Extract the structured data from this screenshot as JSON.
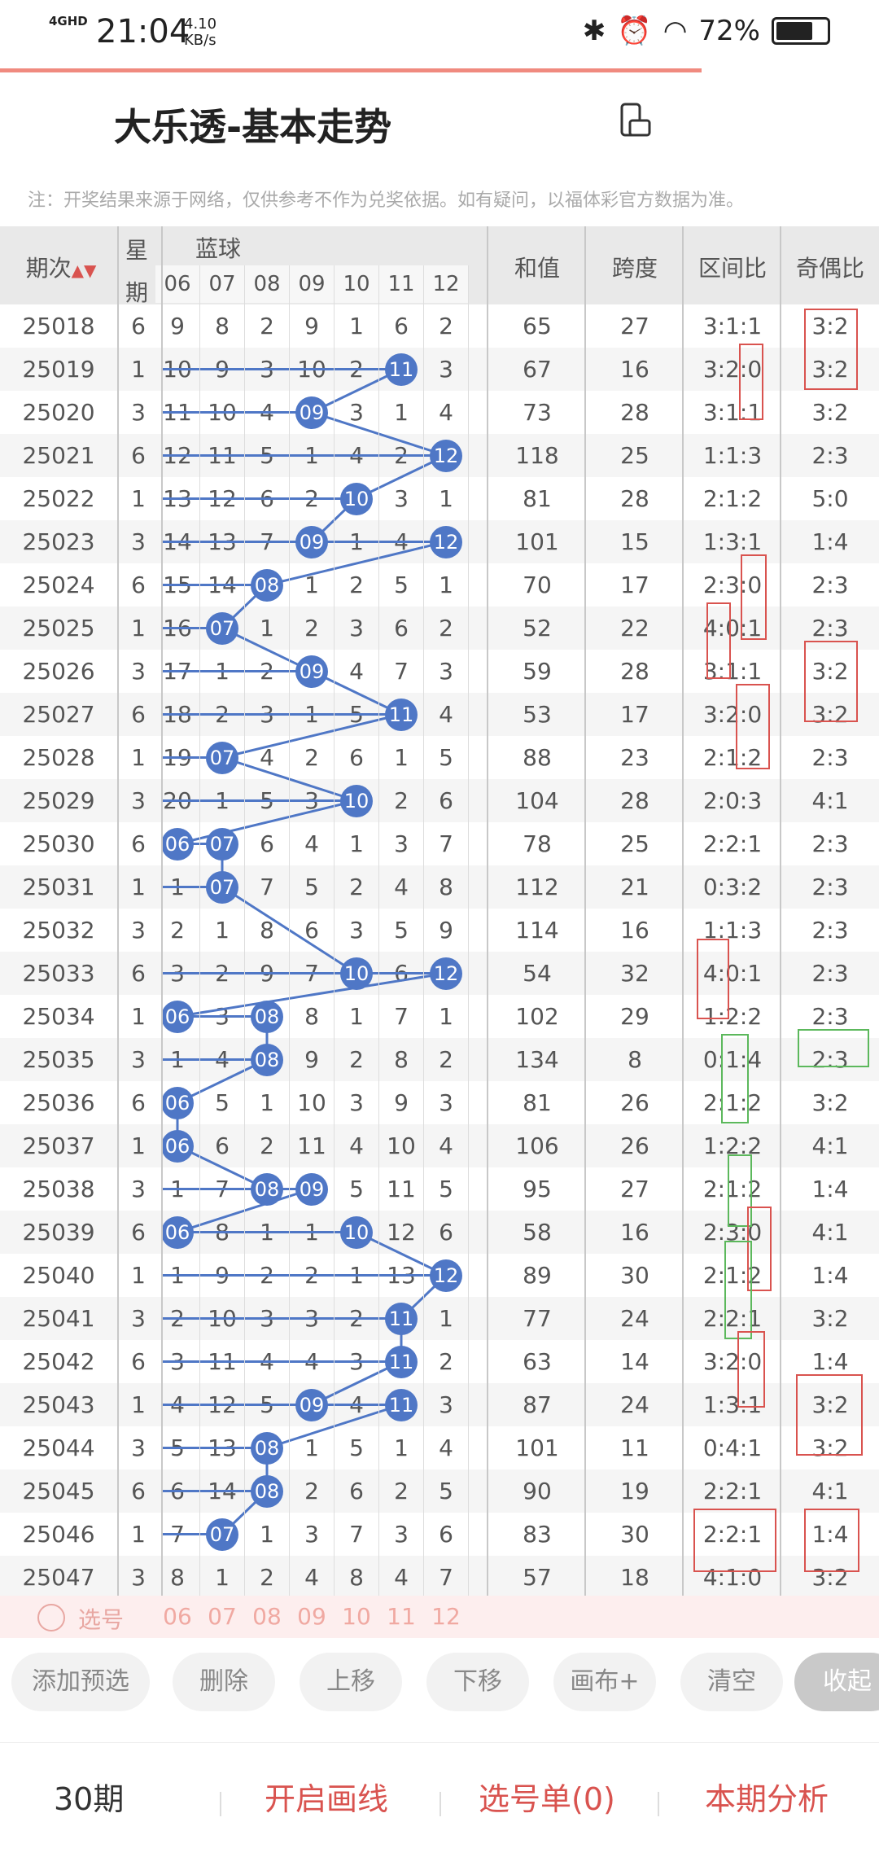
{
  "status": {
    "network": "4GHD",
    "time": "21:04",
    "speed_value": "4.10",
    "speed_unit": "KB/s",
    "battery": "72%"
  },
  "title": "大乐透-基本走势",
  "notice": "注：开奖结果来源于网络，仅供参考不作为兑奖依据。如有疑问，以福体彩官方数据为准。",
  "header": {
    "period": "期次",
    "week_1": "星",
    "week_2": "期",
    "blue": "蓝球",
    "sum": "和值",
    "span": "跨度",
    "range": "区间比",
    "odd_even": "奇偶比",
    "cols": [
      "06",
      "07",
      "08",
      "09",
      "10",
      "11",
      "12"
    ]
  },
  "rows": [
    {
      "p": "25018",
      "w": "6",
      "n": [
        "9",
        "8",
        "2",
        "9",
        "1",
        "6",
        "2"
      ],
      "s": "65",
      "sp": "27",
      "r": "3:1:1",
      "oe": "3:2"
    },
    {
      "p": "25019",
      "w": "1",
      "n": [
        "10",
        "9",
        "3",
        "10",
        "2",
        "11",
        "3"
      ],
      "s": "67",
      "sp": "16",
      "r": "3:2:0",
      "oe": "3:2"
    },
    {
      "p": "25020",
      "w": "3",
      "n": [
        "11",
        "10",
        "4",
        "09",
        "3",
        "1",
        "4"
      ],
      "s": "73",
      "sp": "28",
      "r": "3:1:1",
      "oe": "3:2"
    },
    {
      "p": "25021",
      "w": "6",
      "n": [
        "12",
        "11",
        "5",
        "1",
        "4",
        "2",
        "12"
      ],
      "s": "118",
      "sp": "25",
      "r": "1:1:3",
      "oe": "2:3"
    },
    {
      "p": "25022",
      "w": "1",
      "n": [
        "13",
        "12",
        "6",
        "2",
        "10",
        "3",
        "1"
      ],
      "s": "81",
      "sp": "28",
      "r": "2:1:2",
      "oe": "5:0"
    },
    {
      "p": "25023",
      "w": "3",
      "n": [
        "14",
        "13",
        "7",
        "09",
        "1",
        "4",
        "12"
      ],
      "s": "101",
      "sp": "15",
      "r": "1:3:1",
      "oe": "1:4"
    },
    {
      "p": "25024",
      "w": "6",
      "n": [
        "15",
        "14",
        "08",
        "1",
        "2",
        "5",
        "1"
      ],
      "s": "70",
      "sp": "17",
      "r": "2:3:0",
      "oe": "2:3"
    },
    {
      "p": "25025",
      "w": "1",
      "n": [
        "16",
        "07",
        "1",
        "2",
        "3",
        "6",
        "2"
      ],
      "s": "52",
      "sp": "22",
      "r": "4:0:1",
      "oe": "2:3"
    },
    {
      "p": "25026",
      "w": "3",
      "n": [
        "17",
        "1",
        "2",
        "09",
        "4",
        "7",
        "3"
      ],
      "s": "59",
      "sp": "28",
      "r": "3:1:1",
      "oe": "3:2"
    },
    {
      "p": "25027",
      "w": "6",
      "n": [
        "18",
        "2",
        "3",
        "1",
        "5",
        "11",
        "4"
      ],
      "s": "53",
      "sp": "17",
      "r": "3:2:0",
      "oe": "3:2"
    },
    {
      "p": "25028",
      "w": "1",
      "n": [
        "19",
        "07",
        "4",
        "2",
        "6",
        "1",
        "5"
      ],
      "s": "88",
      "sp": "23",
      "r": "2:1:2",
      "oe": "2:3"
    },
    {
      "p": "25029",
      "w": "3",
      "n": [
        "20",
        "1",
        "5",
        "3",
        "10",
        "2",
        "6"
      ],
      "s": "104",
      "sp": "28",
      "r": "2:0:3",
      "oe": "4:1"
    },
    {
      "p": "25030",
      "w": "6",
      "n": [
        "06",
        "07",
        "6",
        "4",
        "1",
        "3",
        "7"
      ],
      "s": "78",
      "sp": "25",
      "r": "2:2:1",
      "oe": "2:3"
    },
    {
      "p": "25031",
      "w": "1",
      "n": [
        "1",
        "07",
        "7",
        "5",
        "2",
        "4",
        "8"
      ],
      "s": "112",
      "sp": "21",
      "r": "0:3:2",
      "oe": "2:3"
    },
    {
      "p": "25032",
      "w": "3",
      "n": [
        "2",
        "1",
        "8",
        "6",
        "3",
        "5",
        "9"
      ],
      "s": "114",
      "sp": "16",
      "r": "1:1:3",
      "oe": "2:3"
    },
    {
      "p": "25033",
      "w": "6",
      "n": [
        "3",
        "2",
        "9",
        "7",
        "10",
        "6",
        "12"
      ],
      "s": "54",
      "sp": "32",
      "r": "4:0:1",
      "oe": "2:3"
    },
    {
      "p": "25034",
      "w": "1",
      "n": [
        "06",
        "3",
        "08",
        "8",
        "1",
        "7",
        "1"
      ],
      "s": "102",
      "sp": "29",
      "r": "1:2:2",
      "oe": "2:3"
    },
    {
      "p": "25035",
      "w": "3",
      "n": [
        "1",
        "4",
        "08",
        "9",
        "2",
        "8",
        "2"
      ],
      "s": "134",
      "sp": "8",
      "r": "0:1:4",
      "oe": "2:3"
    },
    {
      "p": "25036",
      "w": "6",
      "n": [
        "06",
        "5",
        "1",
        "10",
        "3",
        "9",
        "3"
      ],
      "s": "81",
      "sp": "26",
      "r": "2:1:2",
      "oe": "3:2"
    },
    {
      "p": "25037",
      "w": "1",
      "n": [
        "06",
        "6",
        "2",
        "11",
        "4",
        "10",
        "4"
      ],
      "s": "106",
      "sp": "26",
      "r": "1:2:2",
      "oe": "4:1"
    },
    {
      "p": "25038",
      "w": "3",
      "n": [
        "1",
        "7",
        "08",
        "09",
        "5",
        "11",
        "5"
      ],
      "s": "95",
      "sp": "27",
      "r": "2:1:2",
      "oe": "1:4"
    },
    {
      "p": "25039",
      "w": "6",
      "n": [
        "06",
        "8",
        "1",
        "1",
        "10",
        "12",
        "6"
      ],
      "s": "58",
      "sp": "16",
      "r": "2:3:0",
      "oe": "4:1"
    },
    {
      "p": "25040",
      "w": "1",
      "n": [
        "1",
        "9",
        "2",
        "2",
        "1",
        "13",
        "12"
      ],
      "s": "89",
      "sp": "30",
      "r": "2:1:2",
      "oe": "1:4"
    },
    {
      "p": "25041",
      "w": "3",
      "n": [
        "2",
        "10",
        "3",
        "3",
        "2",
        "11",
        "1"
      ],
      "s": "77",
      "sp": "24",
      "r": "2:2:1",
      "oe": "3:2"
    },
    {
      "p": "25042",
      "w": "6",
      "n": [
        "3",
        "11",
        "4",
        "4",
        "3",
        "11",
        "2"
      ],
      "s": "63",
      "sp": "14",
      "r": "3:2:0",
      "oe": "1:4"
    },
    {
      "p": "25043",
      "w": "1",
      "n": [
        "4",
        "12",
        "5",
        "09",
        "4",
        "11",
        "3"
      ],
      "s": "87",
      "sp": "24",
      "r": "1:3:1",
      "oe": "3:2"
    },
    {
      "p": "25044",
      "w": "3",
      "n": [
        "5",
        "13",
        "08",
        "1",
        "5",
        "1",
        "4"
      ],
      "s": "101",
      "sp": "11",
      "r": "0:4:1",
      "oe": "3:2"
    },
    {
      "p": "25045",
      "w": "6",
      "n": [
        "6",
        "14",
        "08",
        "2",
        "6",
        "2",
        "5"
      ],
      "s": "90",
      "sp": "19",
      "r": "2:2:1",
      "oe": "4:1"
    },
    {
      "p": "25046",
      "w": "1",
      "n": [
        "7",
        "07",
        "1",
        "3",
        "7",
        "3",
        "6"
      ],
      "s": "83",
      "sp": "30",
      "r": "2:2:1",
      "oe": "1:4"
    },
    {
      "p": "25047",
      "w": "3",
      "n": [
        "8",
        "1",
        "2",
        "4",
        "8",
        "4",
        "7"
      ],
      "s": "57",
      "sp": "18",
      "r": "4:1:0",
      "oe": "3:2"
    }
  ],
  "balls": [
    {
      "row": 1,
      "col": 5,
      "v": "11"
    },
    {
      "row": 2,
      "col": 3,
      "v": "09"
    },
    {
      "row": 3,
      "col": 6,
      "v": "12"
    },
    {
      "row": 4,
      "col": 4,
      "v": "10"
    },
    {
      "row": 5,
      "col": 3,
      "v": "09"
    },
    {
      "row": 5,
      "col": 6,
      "v": "12"
    },
    {
      "row": 6,
      "col": 2,
      "v": "08"
    },
    {
      "row": 7,
      "col": 1,
      "v": "07"
    },
    {
      "row": 8,
      "col": 3,
      "v": "09"
    },
    {
      "row": 9,
      "col": 5,
      "v": "11"
    },
    {
      "row": 10,
      "col": 1,
      "v": "07"
    },
    {
      "row": 11,
      "col": 4,
      "v": "10"
    },
    {
      "row": 12,
      "col": 0,
      "v": "06"
    },
    {
      "row": 12,
      "col": 1,
      "v": "07"
    },
    {
      "row": 13,
      "col": 1,
      "v": "07"
    },
    {
      "row": 15,
      "col": 4,
      "v": "10"
    },
    {
      "row": 15,
      "col": 6,
      "v": "12"
    },
    {
      "row": 16,
      "col": 0,
      "v": "06"
    },
    {
      "row": 16,
      "col": 2,
      "v": "08"
    },
    {
      "row": 17,
      "col": 2,
      "v": "08"
    },
    {
      "row": 18,
      "col": 0,
      "v": "06"
    },
    {
      "row": 19,
      "col": 0,
      "v": "06"
    },
    {
      "row": 20,
      "col": 2,
      "v": "08"
    },
    {
      "row": 20,
      "col": 3,
      "v": "09"
    },
    {
      "row": 21,
      "col": 0,
      "v": "06"
    },
    {
      "row": 21,
      "col": 4,
      "v": "10"
    },
    {
      "row": 22,
      "col": 6,
      "v": "12"
    },
    {
      "row": 23,
      "col": 5,
      "v": "11"
    },
    {
      "row": 24,
      "col": 5,
      "v": "11"
    },
    {
      "row": 25,
      "col": 3,
      "v": "09"
    },
    {
      "row": 25,
      "col": 5,
      "v": "11"
    },
    {
      "row": 26,
      "col": 2,
      "v": "08"
    },
    {
      "row": 27,
      "col": 2,
      "v": "08"
    },
    {
      "row": 28,
      "col": 1,
      "v": "07"
    }
  ],
  "select_row": {
    "label": "选号",
    "cols": [
      "06",
      "07",
      "08",
      "09",
      "10",
      "11",
      "12"
    ]
  },
  "toolbar": {
    "add": "添加预选",
    "delete": "删除",
    "up": "上移",
    "down": "下移",
    "canvas": "画布+",
    "clear": "清空",
    "collapse": "收起"
  },
  "bottom": {
    "periods": "30期",
    "draw": "开启画线",
    "picks": "选号单(0)",
    "analysis": "本期分析"
  },
  "colors": {
    "accent": "#d9534f",
    "ball": "#4f77c6",
    "header_bg": "#e9e9e9"
  }
}
